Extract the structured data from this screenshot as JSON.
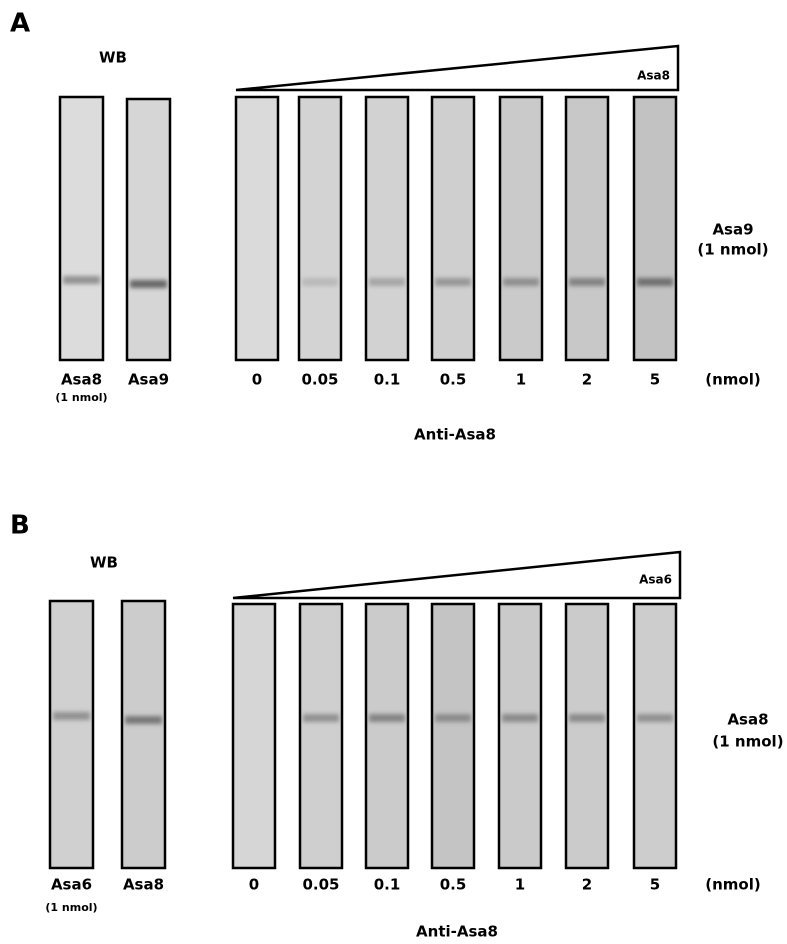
{
  "panels": [
    {
      "label": "A",
      "wb": "WB",
      "left_lanes": [
        {
          "label": "Asa8",
          "note": "(1 nmol)"
        },
        {
          "label": "Asa9"
        }
      ],
      "ramp_label": "Asa8",
      "side_label": [
        "Asa9",
        "(1 nmol)"
      ],
      "doses": [
        "0",
        "0.05",
        "0.1",
        "0.5",
        "1",
        "2",
        "5"
      ],
      "unit": "(nmol)",
      "antibody": "Anti-Asa8"
    },
    {
      "label": "B",
      "wb": "WB",
      "left_lanes": [
        {
          "label": "Asa6",
          "note": "(1 nmol)"
        },
        {
          "label": "Asa8"
        }
      ],
      "ramp_label": "Asa6",
      "side_label": [
        "Asa8",
        "(1 nmol)"
      ],
      "doses": [
        "0",
        "0.05",
        "0.1",
        "0.5",
        "1",
        "2",
        "5"
      ],
      "unit": "(nmol)",
      "antibody": "Anti-Asa8"
    }
  ]
}
